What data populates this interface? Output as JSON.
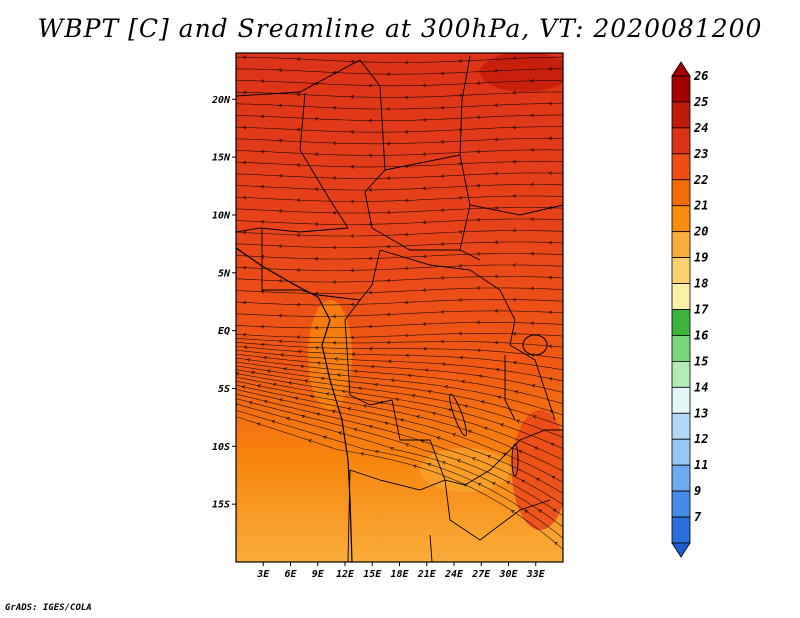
{
  "title": "WBPT [C] and Sreamline at 300hPa, VT: 2020081200",
  "credit": "GrADS: IGES/COLA",
  "map": {
    "lon_range": [
      0,
      36
    ],
    "lat_range": [
      -20,
      24
    ],
    "lat_ticks": [
      {
        "value": 20,
        "label": "20N"
      },
      {
        "value": 15,
        "label": "15N"
      },
      {
        "value": 10,
        "label": "10N"
      },
      {
        "value": 5,
        "label": "5N"
      },
      {
        "value": 0,
        "label": "EQ"
      },
      {
        "value": -5,
        "label": "5S"
      },
      {
        "value": -10,
        "label": "10S"
      },
      {
        "value": -15,
        "label": "15S"
      }
    ],
    "lon_ticks": [
      {
        "value": 3,
        "label": "3E"
      },
      {
        "value": 6,
        "label": "6E"
      },
      {
        "value": 9,
        "label": "9E"
      },
      {
        "value": 12,
        "label": "12E"
      },
      {
        "value": 15,
        "label": "15E"
      },
      {
        "value": 18,
        "label": "18E"
      },
      {
        "value": 21,
        "label": "21E"
      },
      {
        "value": 24,
        "label": "24E"
      },
      {
        "value": 27,
        "label": "27E"
      },
      {
        "value": 30,
        "label": "30E"
      },
      {
        "value": 33,
        "label": "33E"
      }
    ]
  },
  "colorbar": {
    "levels": [
      {
        "label": "26",
        "color": "#a50000"
      },
      {
        "label": "25",
        "color": "#c01a0a"
      },
      {
        "label": "24",
        "color": "#dc3218"
      },
      {
        "label": "23",
        "color": "#ee4d14"
      },
      {
        "label": "22",
        "color": "#f46c0a"
      },
      {
        "label": "21",
        "color": "#f98e0e"
      },
      {
        "label": "20",
        "color": "#f9ad3a"
      },
      {
        "label": "19",
        "color": "#fbd06f"
      },
      {
        "label": "18",
        "color": "#fdf0a8"
      },
      {
        "label": "17",
        "color": "#3cb43c"
      },
      {
        "label": "16",
        "color": "#78d778"
      },
      {
        "label": "15",
        "color": "#b4ebb4"
      },
      {
        "label": "14",
        "color": "#e2f7f7"
      },
      {
        "label": "13",
        "color": "#b4d9f7"
      },
      {
        "label": "12",
        "color": "#96c8f5"
      },
      {
        "label": "11",
        "color": "#6eaaf0"
      },
      {
        "label": "9",
        "color": "#468ce6"
      },
      {
        "label": "7",
        "color": "#2a6edc"
      }
    ],
    "bottom_color": "#1e5ad2"
  },
  "colors": {
    "far_north": "#dc3218",
    "north": "#e8431a",
    "central": "#f05a14",
    "south": "#f8850e",
    "far_south": "#f9ad3a"
  }
}
